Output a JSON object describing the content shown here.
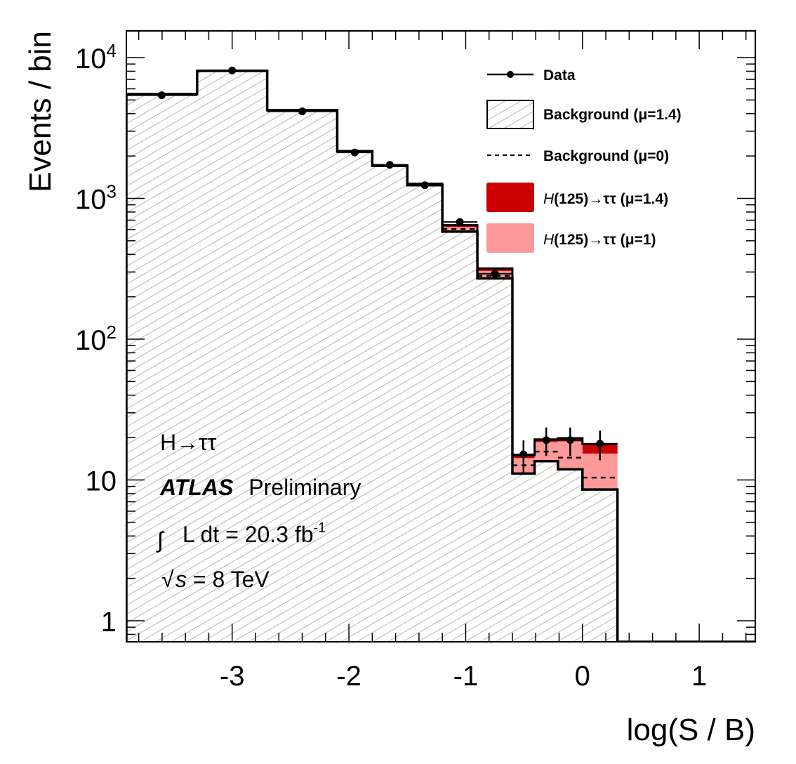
{
  "chart_data": {
    "type": "bar",
    "subtype": "stacked-step-histogram-log",
    "xlabel": "log(S / B)",
    "ylabel": "Events / bin",
    "xlim": [
      -3.906,
      1.48
    ],
    "ylim": [
      0.7,
      15000
    ],
    "yscale": "log",
    "xticks": [
      -3,
      -2,
      -1,
      0,
      1
    ],
    "xtick_labels": [
      "-3",
      "-2",
      "-1",
      "0",
      "1"
    ],
    "yticks": [
      1,
      10,
      100,
      1000,
      10000
    ],
    "ytick_labels": [
      {
        "base": "1",
        "exp": ""
      },
      {
        "base": "10",
        "exp": ""
      },
      {
        "base": "10",
        "exp": "2"
      },
      {
        "base": "10",
        "exp": "3"
      },
      {
        "base": "10",
        "exp": "4"
      }
    ],
    "grid": false,
    "legend_position": "top-right",
    "bin_edges": [
      -3.906,
      -3.3,
      -2.7,
      -2.1,
      -1.8,
      -1.5,
      -1.2,
      -0.9,
      -0.6,
      -0.41,
      -0.21,
      0.0,
      0.3
    ],
    "series": [
      {
        "name": "Background (μ=1.4)",
        "key": "bkg",
        "values": [
          5500,
          8040,
          4230,
          2150,
          1700,
          1240,
          580,
          270,
          11.1,
          13.6,
          11.9,
          8.55
        ]
      },
      {
        "name": "H(125)→ττ (μ=1)",
        "key": "sig1",
        "values_total": [
          5500,
          8040,
          4230,
          2150,
          1710,
          1255,
          625,
          305,
          14.3,
          18.6,
          18.8,
          15.4
        ]
      },
      {
        "name": "H(125)→ττ (μ=1.4)",
        "key": "sig14",
        "values_total": [
          5510,
          8060,
          4250,
          2170,
          1720,
          1270,
          645,
          318,
          15.0,
          19.4,
          19.8,
          18.0
        ]
      },
      {
        "name": "Background (μ=0)",
        "key": "bkg0",
        "values": [
          5520,
          8080,
          4260,
          2170,
          1720,
          1260,
          605,
          282,
          12.7,
          15.9,
          14.4,
          10.4
        ]
      },
      {
        "name": "Data",
        "key": "data",
        "values": [
          5400,
          8100,
          4150,
          2120,
          1730,
          1240,
          680,
          292,
          15.2,
          19.2,
          19.2,
          18.1
        ],
        "errors": [
          73,
          90,
          64,
          46,
          42,
          35,
          26,
          17,
          3.9,
          4.4,
          4.4,
          4.3
        ]
      }
    ],
    "legend": [
      {
        "label": "Data",
        "style": "marker-line"
      },
      {
        "label": "Background (μ=1.4)",
        "style": "hatched"
      },
      {
        "label": "Background (μ=0)",
        "style": "dashed"
      },
      {
        "label_italic": "H",
        "label": "(125)→ττ (μ=1.4)",
        "style": "fill",
        "color": "#cc0000"
      },
      {
        "label_italic": "H",
        "label": "(125)→ττ (μ=1)",
        "style": "fill",
        "color": "#ff9999"
      }
    ],
    "annotations": {
      "channel": "H→ττ",
      "experiment": "ATLAS",
      "status": "Preliminary",
      "lumi_prefix": "L dt = 20.3 fb",
      "lumi_exp": "-1",
      "energy": "s = 8 TeV"
    },
    "colors": {
      "signal_mu14": "#cc0000",
      "signal_mu1": "#ff9999",
      "hatch": "#bdb5ab",
      "line": "#000000"
    }
  }
}
